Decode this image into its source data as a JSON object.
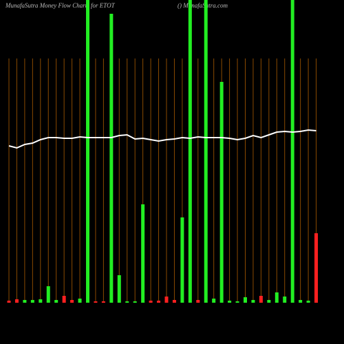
{
  "chart_data": {
    "type": "bar",
    "title": "MunafaSutra  Money Flow  Charts for ETOT",
    "subtitle": "() MunafaSutra.com",
    "categories": [
      null,
      null,
      null,
      null,
      null,
      null,
      null,
      null,
      null,
      null,
      null,
      null,
      null,
      null,
      null,
      null,
      null,
      null,
      null,
      null,
      null,
      null,
      null,
      null,
      null,
      null,
      null,
      null,
      null,
      null,
      null,
      null,
      null,
      null,
      null,
      null,
      null,
      null,
      null,
      null
    ],
    "values": [
      3,
      5,
      4,
      4,
      5,
      24,
      4,
      10,
      4,
      6,
      440,
      2,
      2,
      420,
      40,
      2,
      2,
      143,
      3,
      3,
      9,
      4,
      124,
      440,
      4,
      440,
      6,
      321,
      3,
      2,
      8,
      4,
      10,
      4,
      15,
      9,
      440,
      4,
      3,
      101
    ],
    "colors": [
      "#ff2020",
      "#ff2020",
      "#22ee22",
      "#22ee22",
      "#22ee22",
      "#22ee22",
      "#22ee22",
      "#ff2020",
      "#ff2020",
      "#22ee22",
      "#22ee22",
      "#ff2020",
      "#ff2020",
      "#22ee22",
      "#22ee22",
      "#22ee22",
      "#22ee22",
      "#22ee22",
      "#ff2020",
      "#ff2020",
      "#ff2020",
      "#ff2020",
      "#22ee22",
      "#22ee22",
      "#ff2020",
      "#22ee22",
      "#22ee22",
      "#22ee22",
      "#22ee22",
      "#22ee22",
      "#22ee22",
      "#22ee22",
      "#ff2020",
      "#22ee22",
      "#22ee22",
      "#22ee22",
      "#22ee22",
      "#22ee22",
      "#22ee22",
      "#ff2020"
    ],
    "line": {
      "color": "#ffffff",
      "values": [
        228,
        225,
        230,
        232,
        237,
        240,
        240,
        239,
        239,
        241,
        240,
        240,
        240,
        240,
        243,
        244,
        238,
        239,
        237,
        235,
        237,
        238,
        240,
        239,
        241,
        240,
        240,
        240,
        239,
        237,
        239,
        243,
        240,
        244,
        248,
        249,
        248,
        249,
        251,
        250
      ]
    },
    "ylim": [
      0,
      440
    ]
  }
}
